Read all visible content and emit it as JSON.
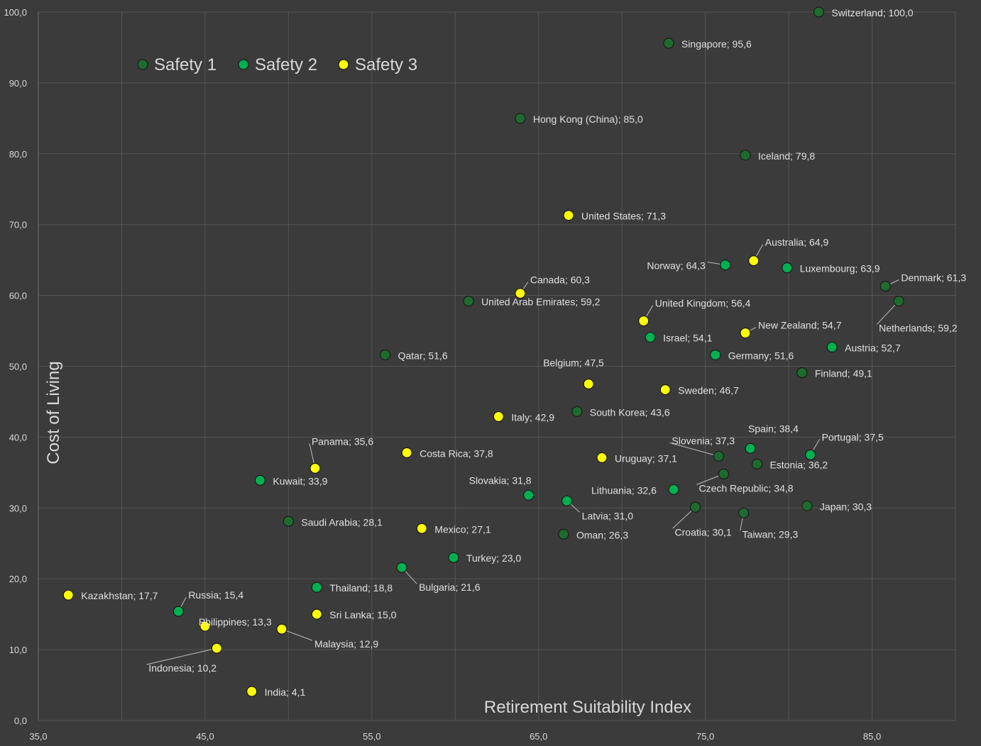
{
  "chart_data": {
    "type": "scatter",
    "title": "",
    "xlabel": "Retirement Suitability Index",
    "ylabel": "Cost of Living",
    "xlim": [
      35,
      90
    ],
    "ylim": [
      0,
      100
    ],
    "x_ticks": [
      "35,0",
      "45,0",
      "55,0",
      "65,0",
      "75,0",
      "85,0"
    ],
    "y_ticks": [
      "0,0",
      "10,0",
      "20,0",
      "30,0",
      "40,0",
      "50,0",
      "60,0",
      "70,0",
      "80,0",
      "90,0",
      "100,0"
    ],
    "grid": true,
    "legend_position": "top-left",
    "colors": {
      "background": "#3b3b3b",
      "safety1": "#1e6b2e",
      "safety2": "#00b050",
      "safety3": "#ffff00",
      "grid": "#555555",
      "text": "#d9d9d9"
    },
    "series": [
      {
        "name": "Safety 1",
        "points": [
          {
            "label": "Switzerland; 100,0",
            "x": 81.8,
            "y": 100.0
          },
          {
            "label": "Singapore; 95,6",
            "x": 72.8,
            "y": 95.6
          },
          {
            "label": "Hong Kong (China); 85,0",
            "x": 63.9,
            "y": 85.0
          },
          {
            "label": "Iceland; 79,8",
            "x": 77.4,
            "y": 79.8
          },
          {
            "label": "Denmark; 61,3",
            "x": 85.8,
            "y": 61.3
          },
          {
            "label": "Netherlands; 59,2",
            "x": 86.6,
            "y": 59.2
          },
          {
            "label": "United Arab Emirates; 59,2",
            "x": 60.8,
            "y": 59.2
          },
          {
            "label": "Qatar; 51,6",
            "x": 55.8,
            "y": 51.6
          },
          {
            "label": "Finland; 49,1",
            "x": 80.8,
            "y": 49.1
          },
          {
            "label": "South Korea; 43,6",
            "x": 67.3,
            "y": 43.6
          },
          {
            "label": "Slovenia; 37,3",
            "x": 75.8,
            "y": 37.3
          },
          {
            "label": "Estonia; 36,2",
            "x": 78.1,
            "y": 36.2
          },
          {
            "label": "Czech Republic; 34,8",
            "x": 76.1,
            "y": 34.8
          },
          {
            "label": "Croatia; 30,1",
            "x": 74.4,
            "y": 30.1
          },
          {
            "label": "Japan; 30,3",
            "x": 81.1,
            "y": 30.3
          },
          {
            "label": "Taiwan; 29,3",
            "x": 77.3,
            "y": 29.3
          },
          {
            "label": "Saudi Arabia; 28,1",
            "x": 50.0,
            "y": 28.1
          },
          {
            "label": "Oman; 26,3",
            "x": 66.5,
            "y": 26.3
          }
        ]
      },
      {
        "name": "Safety 2",
        "points": [
          {
            "label": "Norway; 64,3",
            "x": 76.2,
            "y": 64.3
          },
          {
            "label": "Luxembourg; 63,9",
            "x": 79.9,
            "y": 63.9
          },
          {
            "label": "Israel; 54,1",
            "x": 71.7,
            "y": 54.1
          },
          {
            "label": "Austria; 52,7",
            "x": 82.6,
            "y": 52.7
          },
          {
            "label": "Germany; 51,6",
            "x": 75.6,
            "y": 51.6
          },
          {
            "label": "Spain; 38,4",
            "x": 77.7,
            "y": 38.4
          },
          {
            "label": "Portugal; 37,5",
            "x": 81.3,
            "y": 37.5
          },
          {
            "label": "Kuwait; 33,9",
            "x": 48.3,
            "y": 33.9
          },
          {
            "label": "Lithuania; 32,6",
            "x": 73.1,
            "y": 32.6
          },
          {
            "label": "Slovakia; 31,8",
            "x": 64.4,
            "y": 31.8
          },
          {
            "label": "Latvia; 31,0",
            "x": 66.7,
            "y": 31.0
          },
          {
            "label": "Turkey; 23,0",
            "x": 59.9,
            "y": 23.0
          },
          {
            "label": "Bulgaria; 21,6",
            "x": 56.8,
            "y": 21.6
          },
          {
            "label": "Thailand; 18,8",
            "x": 51.7,
            "y": 18.8
          },
          {
            "label": "Russia; 15,4",
            "x": 43.4,
            "y": 15.4
          }
        ]
      },
      {
        "name": "Safety 3",
        "points": [
          {
            "label": "United States; 71,3",
            "x": 66.8,
            "y": 71.3
          },
          {
            "label": "Australia; 64,9",
            "x": 77.9,
            "y": 64.9
          },
          {
            "label": "Canada; 60,3",
            "x": 63.9,
            "y": 60.3
          },
          {
            "label": "United Kingdom; 56,4",
            "x": 71.3,
            "y": 56.4
          },
          {
            "label": "New Zealand; 54,7",
            "x": 77.4,
            "y": 54.7
          },
          {
            "label": "Belgium; 47,5",
            "x": 68.0,
            "y": 47.5
          },
          {
            "label": "Sweden; 46,7",
            "x": 72.6,
            "y": 46.7
          },
          {
            "label": "Italy; 42,9",
            "x": 62.6,
            "y": 42.9
          },
          {
            "label": "Costa Rica; 37,8",
            "x": 57.1,
            "y": 37.8
          },
          {
            "label": "Uruguay; 37,1",
            "x": 68.8,
            "y": 37.1
          },
          {
            "label": "Panama; 35,6",
            "x": 51.6,
            "y": 35.6
          },
          {
            "label": "Mexico; 27,1",
            "x": 58.0,
            "y": 27.1
          },
          {
            "label": "Kazakhstan; 17,7",
            "x": 36.8,
            "y": 17.7
          },
          {
            "label": "Sri Lanka; 15,0",
            "x": 51.7,
            "y": 15.0
          },
          {
            "label": "Philippines; 13,3",
            "x": 45.0,
            "y": 13.3
          },
          {
            "label": "Malaysia; 12,9",
            "x": 49.6,
            "y": 12.9
          },
          {
            "label": "Indonesia; 10,2",
            "x": 45.7,
            "y": 10.2
          },
          {
            "label": "India; 4,1",
            "x": 47.8,
            "y": 4.1
          }
        ]
      }
    ]
  }
}
